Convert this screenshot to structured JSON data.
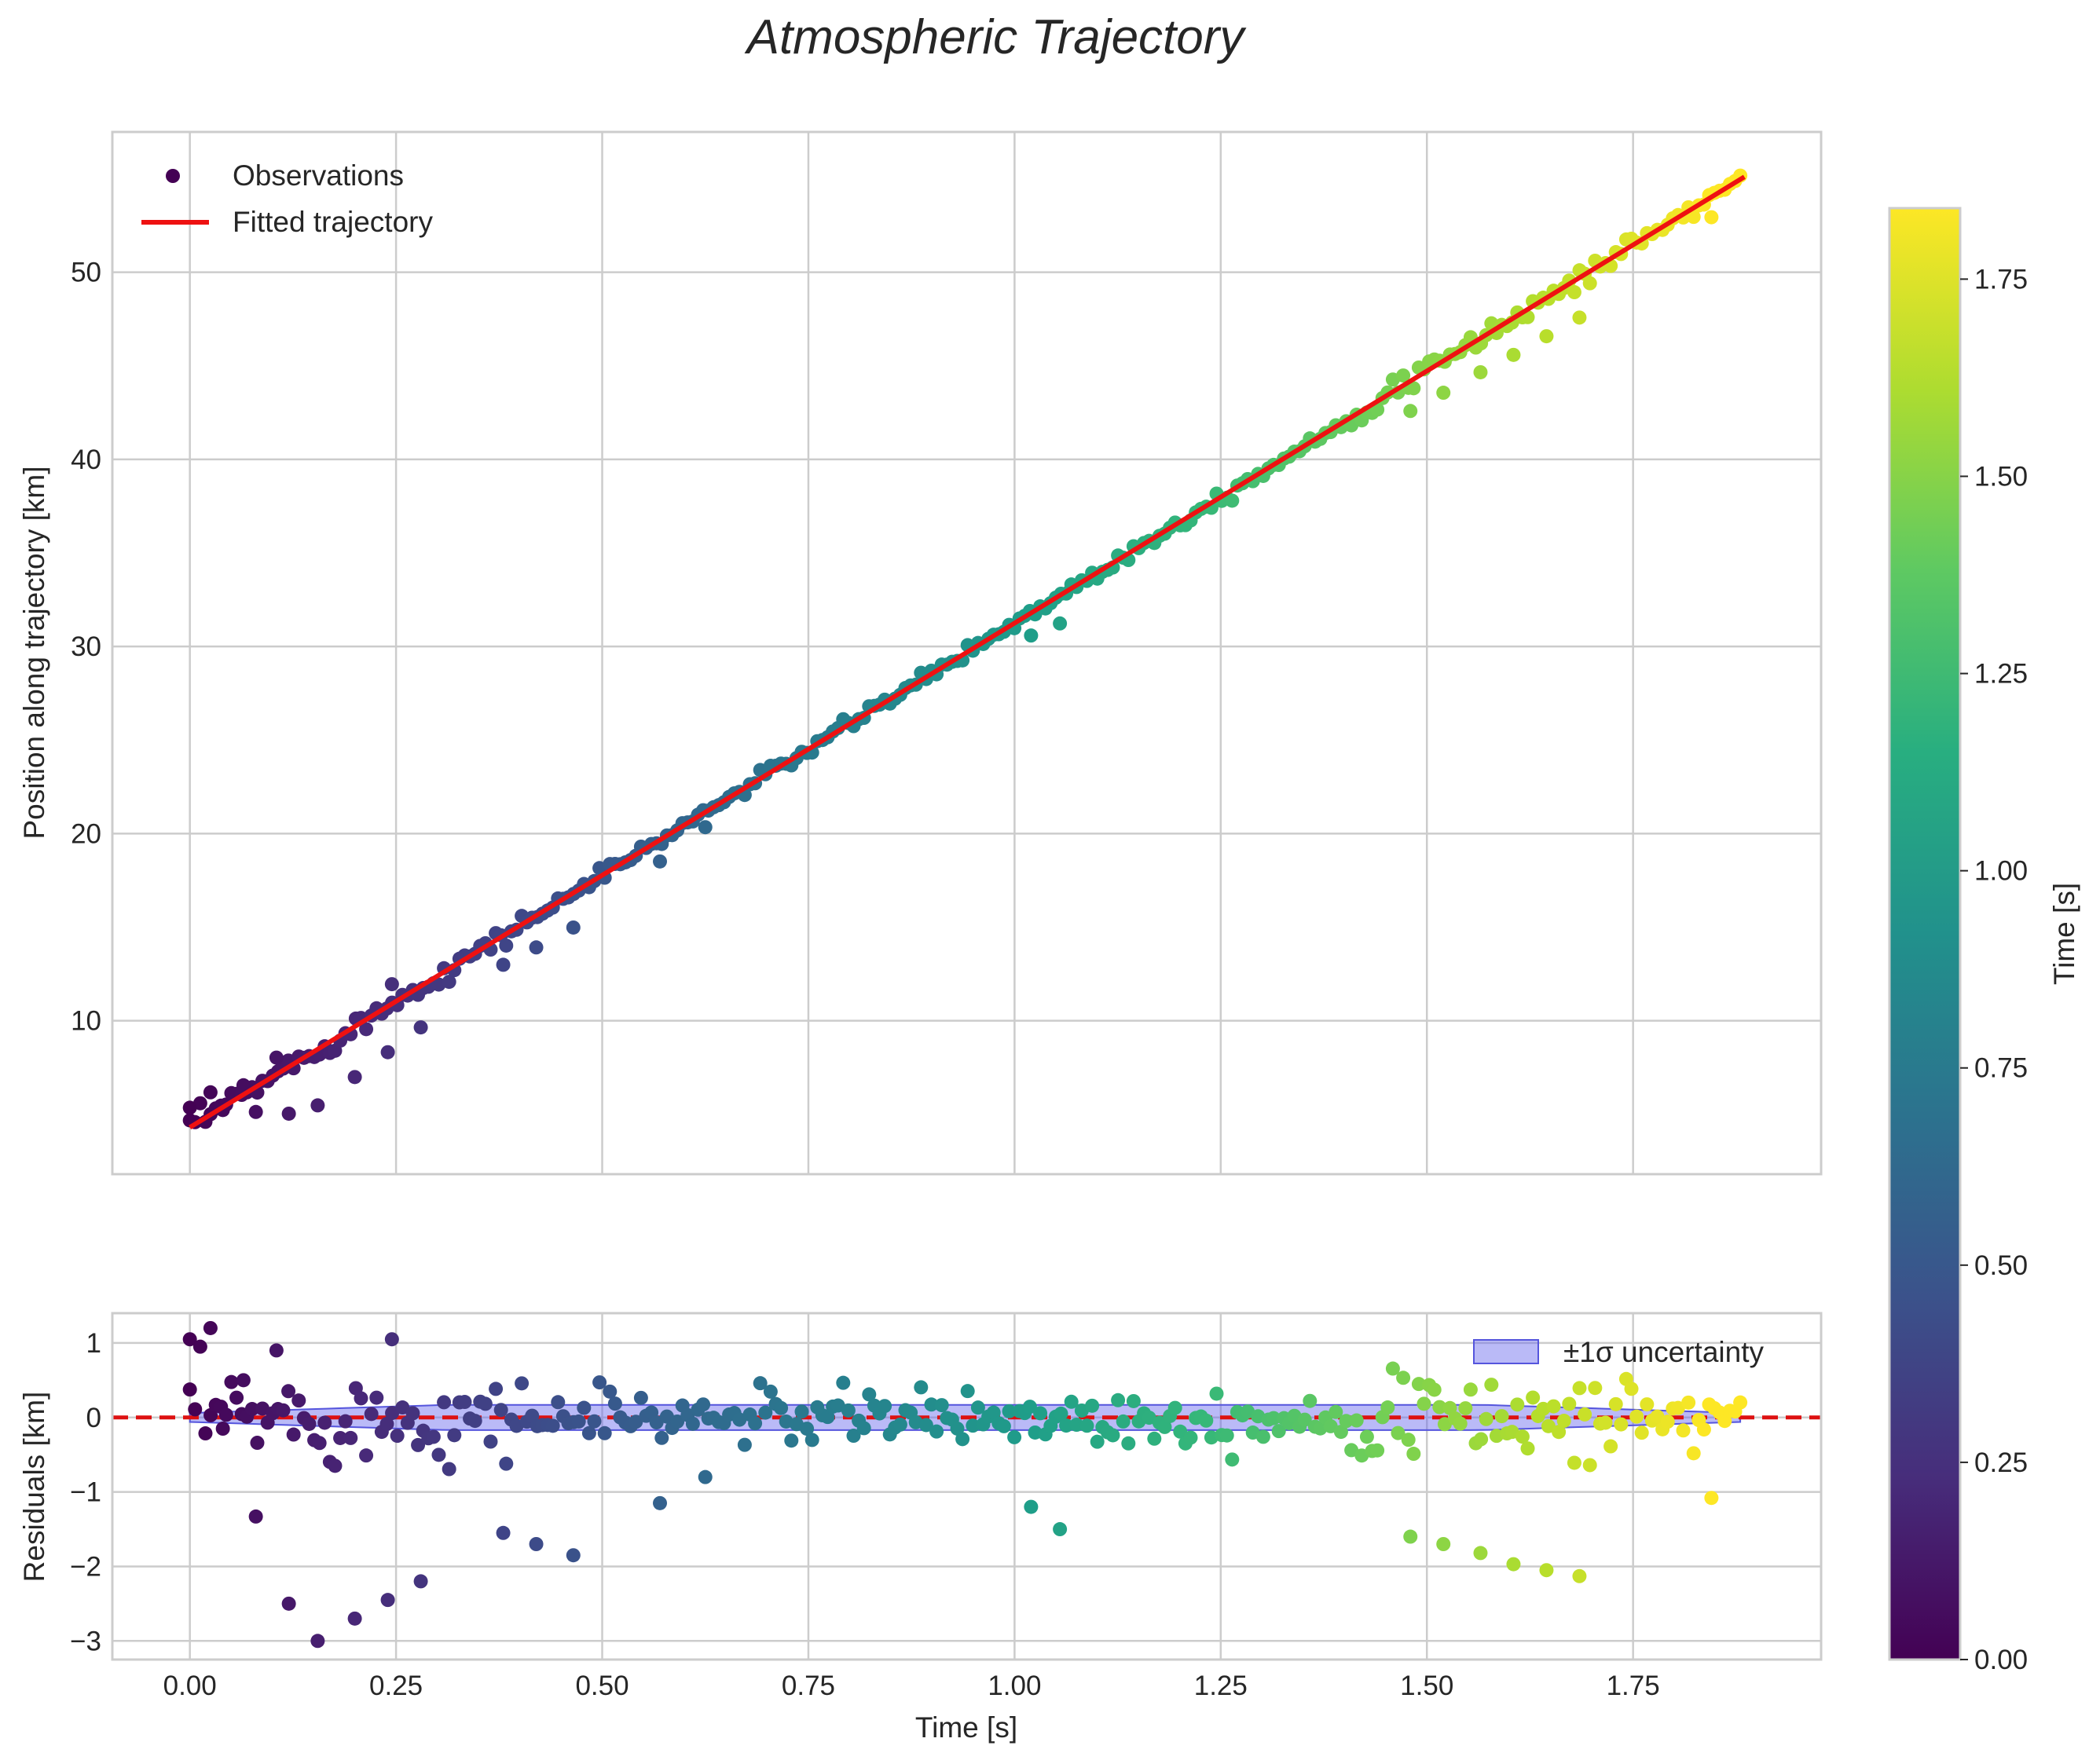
{
  "chart_data": {
    "title": "Atmospheric Trajectory",
    "top_panel": {
      "type": "scatter",
      "xlim": [
        -0.094,
        1.978
      ],
      "ylim": [
        1.8,
        57.5
      ],
      "ylabel": "Position along trajectory [km]",
      "xticks": [
        0.0,
        0.25,
        0.5,
        0.75,
        1.0,
        1.25,
        1.5,
        1.75
      ],
      "yticks": [
        10,
        20,
        30,
        40,
        50
      ],
      "ytick_labels": [
        "10",
        "20",
        "30",
        "40",
        "50"
      ],
      "grid": true,
      "legend": {
        "location": "upper-left",
        "entries": [
          "Observations",
          "Fitted trajectory"
        ]
      },
      "fit": {
        "x": [
          0.0,
          1.885
        ],
        "y": [
          4.3,
          55.1
        ],
        "color": "#ee1111"
      }
    },
    "bottom_panel": {
      "type": "scatter",
      "xlim": [
        -0.094,
        1.978
      ],
      "ylim": [
        -3.25,
        1.4
      ],
      "xlabel": "Time [s]",
      "ylabel": "Residuals [km]",
      "xticks": [
        0.0,
        0.25,
        0.5,
        0.75,
        1.0,
        1.25,
        1.5,
        1.75
      ],
      "xtick_labels": [
        "0.00",
        "0.25",
        "0.50",
        "0.75",
        "1.00",
        "1.25",
        "1.50",
        "1.75"
      ],
      "yticks": [
        -3,
        -2,
        -1,
        0,
        1
      ],
      "ytick_labels": [
        "−3",
        "−2",
        "−1",
        "0",
        "1"
      ],
      "grid": true,
      "zero_line": {
        "y": 0,
        "color": "#dd1111",
        "style": "dashed"
      },
      "band": {
        "label": "±1σ uncertainty",
        "color": "#6666ee",
        "sigma_start": 0.06,
        "sigma_peak": 0.17,
        "sigma_end": 0.06
      },
      "legend": {
        "location": "upper-right",
        "entries": [
          "±1σ uncertainty"
        ]
      }
    },
    "colorbar": {
      "label": "Time [s]",
      "range": [
        0.0,
        1.84
      ],
      "ticks": [
        0.0,
        0.25,
        0.5,
        0.75,
        1.0,
        1.25,
        1.5,
        1.75
      ],
      "tick_labels": [
        "0.00",
        "0.25",
        "0.50",
        "0.75",
        "1.00",
        "1.25",
        "1.50",
        "1.75"
      ],
      "colormap": "viridis"
    },
    "series": {
      "name": "Observations",
      "n_points": 300,
      "t_range": [
        0.0,
        1.88
      ],
      "velocity_km_s": 26.95,
      "intercept_km": 4.3,
      "residual_std_km": 0.3,
      "outliers": [
        {
          "t": 0.0,
          "r": 1.05
        },
        {
          "t": 0.025,
          "r": 1.2
        },
        {
          "t": 0.04,
          "r": -0.15
        },
        {
          "t": 0.065,
          "r": 0.5
        },
        {
          "t": 0.08,
          "r": -1.33
        },
        {
          "t": 0.105,
          "r": 0.9
        },
        {
          "t": 0.12,
          "r": -2.5
        },
        {
          "t": 0.155,
          "r": -3.0
        },
        {
          "t": 0.2,
          "r": -2.7
        },
        {
          "t": 0.24,
          "r": -2.45
        },
        {
          "t": 0.245,
          "r": 1.05
        },
        {
          "t": 0.28,
          "r": -2.2
        },
        {
          "t": 0.38,
          "r": -1.55
        },
        {
          "t": 0.42,
          "r": -1.7
        },
        {
          "t": 0.465,
          "r": -1.85
        },
        {
          "t": 0.57,
          "r": -1.15
        },
        {
          "t": 0.625,
          "r": -0.8
        },
        {
          "t": 1.02,
          "r": -1.2
        },
        {
          "t": 1.055,
          "r": -1.5
        },
        {
          "t": 1.48,
          "r": -1.6
        },
        {
          "t": 1.52,
          "r": -1.7
        },
        {
          "t": 1.565,
          "r": -1.82
        },
        {
          "t": 1.605,
          "r": -1.97
        },
        {
          "t": 1.645,
          "r": -2.05
        },
        {
          "t": 1.685,
          "r": -2.13
        },
        {
          "t": 1.845,
          "r": -1.08
        }
      ]
    }
  }
}
